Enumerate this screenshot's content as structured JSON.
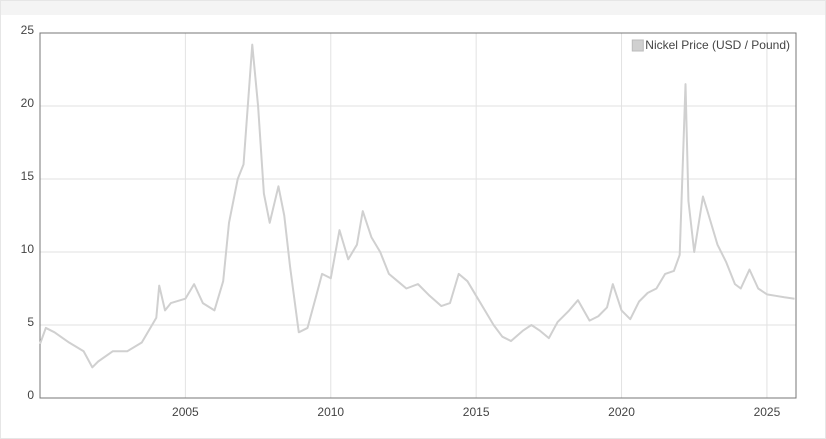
{
  "chart_data": {
    "type": "line",
    "x": [
      2000.0,
      2000.2,
      2000.5,
      2001.0,
      2001.5,
      2001.8,
      2002.0,
      2002.5,
      2003.0,
      2003.5,
      2004.0,
      2004.1,
      2004.3,
      2004.5,
      2005.0,
      2005.3,
      2005.6,
      2006.0,
      2006.3,
      2006.5,
      2006.8,
      2007.0,
      2007.3,
      2007.5,
      2007.7,
      2007.9,
      2008.2,
      2008.4,
      2008.6,
      2008.9,
      2009.2,
      2009.5,
      2009.7,
      2010.0,
      2010.3,
      2010.6,
      2010.9,
      2011.1,
      2011.4,
      2011.7,
      2012.0,
      2012.3,
      2012.6,
      2013.0,
      2013.4,
      2013.8,
      2014.1,
      2014.4,
      2014.7,
      2015.0,
      2015.3,
      2015.6,
      2015.9,
      2016.2,
      2016.6,
      2016.9,
      2017.2,
      2017.5,
      2017.8,
      2018.2,
      2018.5,
      2018.9,
      2019.2,
      2019.5,
      2019.7,
      2020.0,
      2020.3,
      2020.6,
      2020.9,
      2021.2,
      2021.5,
      2021.8,
      2022.0,
      2022.2,
      2022.3,
      2022.5,
      2022.8,
      2023.0,
      2023.3,
      2023.6,
      2023.9,
      2024.1,
      2024.4,
      2024.7,
      2025.0,
      2025.3,
      2025.6,
      2025.95
    ],
    "series": [
      {
        "name": "Nickel Price (USD / Pound)",
        "color": "#d0d0d0",
        "values": [
          3.7,
          4.8,
          4.5,
          3.8,
          3.2,
          2.1,
          2.5,
          3.2,
          3.2,
          3.8,
          5.5,
          7.7,
          6.0,
          6.5,
          6.8,
          7.8,
          6.5,
          6.0,
          8.0,
          12.0,
          15.0,
          16.0,
          24.2,
          20.0,
          14.0,
          12.0,
          14.5,
          12.5,
          9.0,
          4.5,
          4.8,
          7.0,
          8.5,
          8.2,
          11.5,
          9.5,
          10.5,
          12.8,
          11.0,
          10.0,
          8.5,
          8.0,
          7.5,
          7.8,
          7.0,
          6.3,
          6.5,
          8.5,
          8.0,
          7.0,
          6.0,
          5.0,
          4.2,
          3.9,
          4.6,
          5.0,
          4.6,
          4.1,
          5.2,
          6.0,
          6.7,
          5.3,
          5.6,
          6.2,
          7.8,
          6.0,
          5.4,
          6.6,
          7.2,
          7.5,
          8.5,
          8.7,
          9.8,
          21.5,
          13.5,
          10.0,
          13.8,
          12.5,
          10.5,
          9.3,
          7.8,
          7.5,
          8.8,
          7.5,
          7.1,
          7.0,
          6.9,
          6.8
        ]
      }
    ],
    "xlim": [
      2000,
      2026
    ],
    "xticks": [
      2005,
      2010,
      2015,
      2020,
      2025
    ],
    "ylim": [
      0,
      25
    ],
    "yticks": [
      0,
      5,
      10,
      15,
      20,
      25
    ],
    "grid": true,
    "legend": "top-right"
  }
}
